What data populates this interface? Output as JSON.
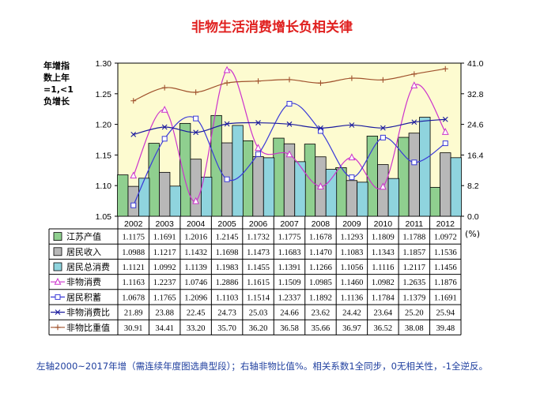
{
  "page": {
    "title": "非物生活消费增长负相关律",
    "left_axis_label": "年增指数上年=1,<1负增长",
    "right_axis_unit": "(%)",
    "footnote": "左轴2000~2017年增（需连续年度图选典型段）；右轴非物比值%。相关系数1全同步，0无相关性，-1全逆反。"
  },
  "colors": {
    "plot_bg": "#fdfbd0",
    "bar1": "#8fcf8f",
    "bar2": "#b8b8b8",
    "bar3": "#8fd4de",
    "line_pink": "#cc33cc",
    "line_blue": "#3a3ad8",
    "line_navy": "#1a1a9e",
    "line_brown": "#a0522d"
  },
  "chart_data": {
    "type": "bar",
    "categories": [
      "2002",
      "2003",
      "2004",
      "2005",
      "2006",
      "2007",
      "2008",
      "2009",
      "2010",
      "2011",
      "2012"
    ],
    "left_axis": {
      "min": 1.05,
      "max": 1.3,
      "ticks": [
        "1.05",
        "1.10",
        "1.15",
        "1.20",
        "1.25",
        "1.30"
      ]
    },
    "right_axis": {
      "min": 0.0,
      "max": 41.0,
      "ticks": [
        "0.0",
        "8.2",
        "16.4",
        "24.6",
        "32.8",
        "41.0"
      ]
    },
    "bar_series": [
      {
        "name": "江苏产值",
        "values": [
          1.1175,
          1.1691,
          1.2016,
          1.2145,
          1.1732,
          1.1775,
          1.1678,
          1.1293,
          1.1809,
          1.1788,
          1.0972
        ],
        "labels": [
          "1.1175",
          "1.1691",
          "1.2016",
          "1.2145",
          "1.1732",
          "1.1775",
          "1.1678",
          "1.1293",
          "1.1809",
          "1.1788",
          "1.0972"
        ]
      },
      {
        "name": "居民收入",
        "values": [
          1.0988,
          1.1217,
          1.1432,
          1.1698,
          1.1473,
          1.1683,
          1.147,
          1.1083,
          1.1343,
          1.1857,
          1.1536
        ],
        "labels": [
          "1.0988",
          "1.1217",
          "1.1432",
          "1.1698",
          "1.1473",
          "1.1683",
          "1.1470",
          "1.1083",
          "1.1343",
          "1.1857",
          "1.1536"
        ]
      },
      {
        "name": "居民总消费",
        "values": [
          1.1121,
          1.0992,
          1.1139,
          1.1983,
          1.1455,
          1.1391,
          1.1266,
          1.1056,
          1.1116,
          1.2117,
          1.1456
        ],
        "labels": [
          "1.1121",
          "1.0992",
          "1.1139",
          "1.1983",
          "1.1455",
          "1.1391",
          "1.1266",
          "1.1056",
          "1.1116",
          "1.2117",
          "1.1456"
        ]
      }
    ],
    "line_series": [
      {
        "name": "非物消费",
        "axis": "left",
        "marker": "triangle",
        "values": [
          1.1163,
          1.2237,
          1.0746,
          1.2886,
          1.1615,
          1.1509,
          1.0985,
          1.146,
          1.0982,
          1.2635,
          1.1876
        ],
        "labels": [
          "1.1163",
          "1.2237",
          "1.0746",
          "1.2886",
          "1.1615",
          "1.1509",
          "1.0985",
          "1.1460",
          "1.0982",
          "1.2635",
          "1.1876"
        ]
      },
      {
        "name": "居民积蓄",
        "axis": "left",
        "marker": "square",
        "values": [
          1.0678,
          1.1765,
          1.2096,
          1.1103,
          1.1514,
          1.2337,
          1.1892,
          1.1136,
          1.1784,
          1.1379,
          1.1691
        ],
        "labels": [
          "1.0678",
          "1.1765",
          "1.2096",
          "1.1103",
          "1.1514",
          "1.2337",
          "1.1892",
          "1.1136",
          "1.1784",
          "1.1379",
          "1.1691"
        ]
      },
      {
        "name": "非物消费比",
        "axis": "right",
        "marker": "x",
        "values": [
          21.89,
          23.88,
          22.45,
          24.73,
          25.03,
          24.66,
          23.62,
          24.42,
          23.64,
          25.2,
          25.94
        ],
        "labels": [
          "21.89",
          "23.88",
          "22.45",
          "24.73",
          "25.03",
          "24.66",
          "23.62",
          "24.42",
          "23.64",
          "25.20",
          "25.94"
        ]
      },
      {
        "name": "非物比重值",
        "axis": "right",
        "marker": "plus",
        "values": [
          30.91,
          34.41,
          33.2,
          35.7,
          36.2,
          36.58,
          35.66,
          36.97,
          36.52,
          38.08,
          39.48
        ],
        "labels": [
          "30.91",
          "34.41",
          "33.20",
          "35.70",
          "36.20",
          "36.58",
          "35.66",
          "36.97",
          "36.52",
          "38.08",
          "39.48"
        ]
      }
    ],
    "grid": false,
    "legend": "table-below"
  }
}
